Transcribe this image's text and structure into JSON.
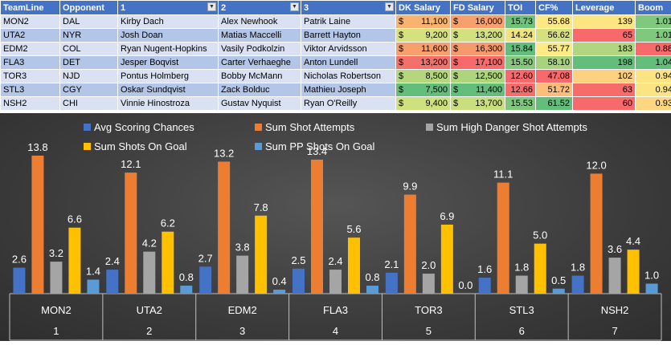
{
  "table": {
    "headers": [
      "TeamLine",
      "Opponent",
      "1",
      "2",
      "3",
      "DK Salary",
      "FD Salary",
      "TOI",
      "CF%",
      "Leverage",
      "Boom"
    ],
    "dropdown_icon": "filter-dropdown-icon",
    "rows": [
      {
        "team": "MON2",
        "opp": "DAL",
        "p1": "Kirby Dach",
        "p2": "Alex Newhook",
        "p3": "Patrik Laine",
        "dk": "11,100",
        "fd": "16,000",
        "toi": "15.73",
        "cf": "55.68",
        "lev": "139",
        "boom": "1.01"
      },
      {
        "team": "UTA2",
        "opp": "NYR",
        "p1": "Josh Doan",
        "p2": "Matias Maccelli",
        "p3": "Barrett Hayton",
        "dk": "9,200",
        "fd": "13,200",
        "toi": "14.24",
        "cf": "56.62",
        "lev": "65",
        "boom": "1.01"
      },
      {
        "team": "EDM2",
        "opp": "COL",
        "p1": "Ryan Nugent-Hopkins",
        "p2": "Vasily Podkolzin",
        "p3": "Viktor Arvidsson",
        "dk": "11,600",
        "fd": "16,300",
        "toi": "15.84",
        "cf": "55.77",
        "lev": "183",
        "boom": "0.88"
      },
      {
        "team": "FLA3",
        "opp": "DET",
        "p1": "Jesper Boqvist",
        "p2": "Carter Verhaeghe",
        "p3": "Anton Lundell",
        "dk": "13,200",
        "fd": "17,100",
        "toi": "15.50",
        "cf": "58.10",
        "lev": "198",
        "boom": "1.04"
      },
      {
        "team": "TOR3",
        "opp": "NJD",
        "p1": "Pontus Holmberg",
        "p2": "Bobby McMann",
        "p3": "Nicholas Robertson",
        "dk": "8,500",
        "fd": "12,500",
        "toi": "12.60",
        "cf": "47.08",
        "lev": "102",
        "boom": "0.94"
      },
      {
        "team": "STL3",
        "opp": "CGY",
        "p1": "Oskar Sundqvist",
        "p2": "Zack Bolduc",
        "p3": "Mathieu Joseph",
        "dk": "7,500",
        "fd": "11,400",
        "toi": "12.66",
        "cf": "51.72",
        "lev": "63",
        "boom": "0.94"
      },
      {
        "team": "NSH2",
        "opp": "CHI",
        "p1": "Vinnie Hinostroza",
        "p2": "Gustav Nyquist",
        "p3": "Ryan O'Reilly",
        "dk": "9,400",
        "fd": "13,700",
        "toi": "15.53",
        "cf": "61.52",
        "lev": "60",
        "boom": "0.93"
      }
    ],
    "currency_symbol": "$",
    "cell_colors": {
      "dk": [
        "#f8b370",
        "#d6e07f",
        "#f7a06e",
        "#f4716b",
        "#b5d67c",
        "#63be7b",
        "#cfe07f"
      ],
      "fd": [
        "#f7a06e",
        "#d3e07f",
        "#f69a6d",
        "#f8696b",
        "#aed47c",
        "#63be7b",
        "#c9de7f"
      ],
      "toi": [
        "#6fc27c",
        "#f0e481",
        "#63be7b",
        "#86c87d",
        "#f8696b",
        "#f86b6b",
        "#80c77d"
      ],
      "cf": [
        "#fee883",
        "#d7e07f",
        "#ffeb84",
        "#a9d27f",
        "#f8696b",
        "#fcbf7b",
        "#63be7b"
      ],
      "lev": [
        "#fde582",
        "#f8696b",
        "#b1d580",
        "#63be7b",
        "#fdd17f",
        "#f86b6b",
        "#f8696b"
      ],
      "boom": [
        "#7fc87e",
        "#7fc87e",
        "#f8696b",
        "#63be7b",
        "#fde483",
        "#fde483",
        "#fed580"
      ]
    }
  },
  "chart_data": {
    "type": "bar",
    "legend_position": "top",
    "legend": [
      {
        "name": "Avg Scoring Chances",
        "color": "#4472c4"
      },
      {
        "name": "Sum Shot Attempts",
        "color": "#ed7d31"
      },
      {
        "name": "Sum High Danger Shot Attempts",
        "color": "#a5a5a5"
      },
      {
        "name": "Sum Shots On Goal",
        "color": "#ffc000"
      },
      {
        "name": "Sum PP Shots On Goal",
        "color": "#5b9bd5"
      }
    ],
    "categories": [
      "MON2",
      "UTA2",
      "EDM2",
      "FLA3",
      "TOR3",
      "STL3",
      "NSH2"
    ],
    "category_index": [
      "1",
      "2",
      "3",
      "4",
      "5",
      "6",
      "7"
    ],
    "series": [
      {
        "name": "Avg Scoring Chances",
        "values": [
          2.6,
          2.4,
          2.7,
          2.5,
          2.1,
          1.6,
          1.8
        ],
        "labels": [
          "2.6",
          "2.4",
          "2.7",
          "2.5",
          "2.1",
          "1.6",
          "1.8"
        ]
      },
      {
        "name": "Sum Shot Attempts",
        "values": [
          13.8,
          12.1,
          13.2,
          13.4,
          9.9,
          11.1,
          12.0
        ],
        "labels": [
          "13.8",
          "12.1",
          "13.2",
          "13.4",
          "9.9",
          "11.1",
          "12.0"
        ]
      },
      {
        "name": "Sum High Danger Shot Attempts",
        "values": [
          3.2,
          4.2,
          3.8,
          2.4,
          2.0,
          1.8,
          3.6
        ],
        "labels": [
          "3.2",
          "4.2",
          "3.8",
          "2.4",
          "2.0",
          "1.8",
          "3.6"
        ]
      },
      {
        "name": "Sum Shots On Goal",
        "values": [
          6.6,
          6.2,
          7.8,
          5.6,
          6.9,
          5.0,
          4.4
        ],
        "labels": [
          "6.6",
          "6.2",
          "7.8",
          "5.6",
          "6.9",
          "5.0",
          "4.4"
        ]
      },
      {
        "name": "Sum PP Shots On Goal",
        "values": [
          1.4,
          0.8,
          0.4,
          0.8,
          0.0,
          0.5,
          1.0
        ],
        "labels": [
          "1.4",
          "0.8",
          "0.4",
          "0.8",
          "0.0",
          "0.5",
          "1.0"
        ]
      }
    ],
    "ylim": [
      0,
      15
    ],
    "grid": false,
    "title": "",
    "xlabel": "",
    "ylabel": ""
  }
}
